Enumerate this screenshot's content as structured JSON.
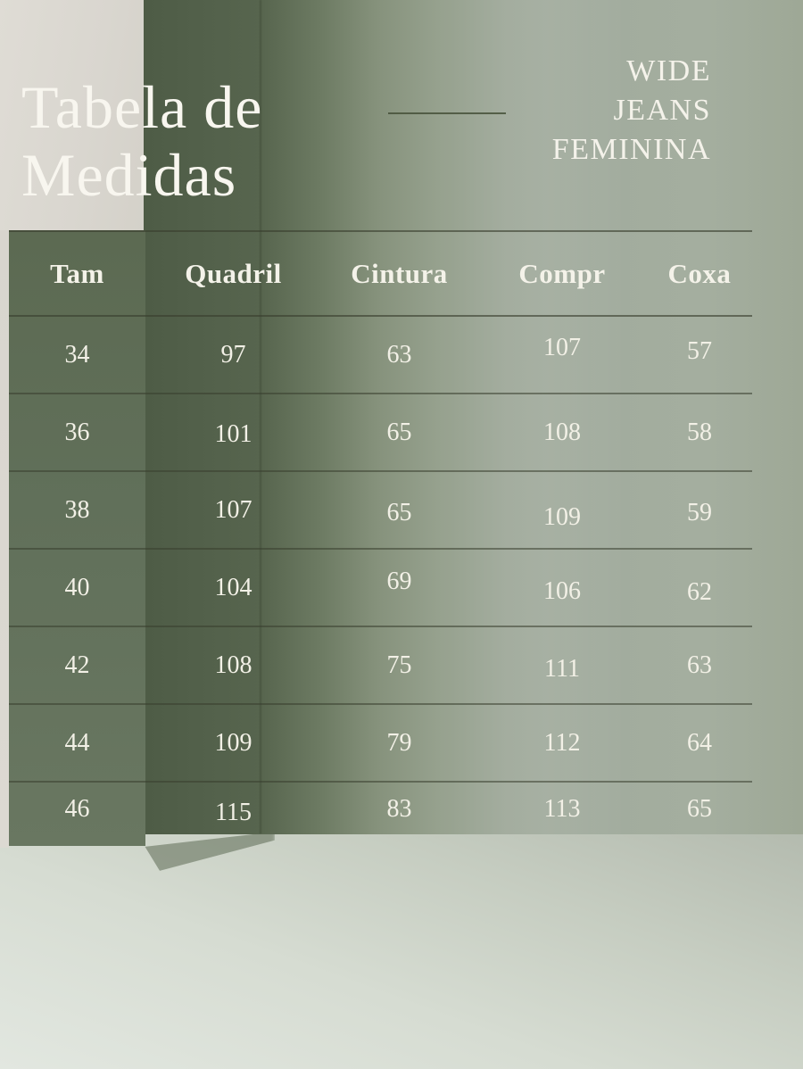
{
  "title": {
    "line1": "Tabela de",
    "line2": "Medidas"
  },
  "subtitle": {
    "lines": [
      "WIDE",
      "JEANS",
      "FEMININA"
    ]
  },
  "table": {
    "headers": [
      "Tam",
      "Quadril",
      "Cintura",
      "Compr",
      "Coxa"
    ],
    "rows": [
      [
        "34",
        "97",
        "63",
        "107",
        "57"
      ],
      [
        "36",
        "101",
        "65",
        "108",
        "58"
      ],
      [
        "38",
        "107",
        "65",
        "109",
        "59"
      ],
      [
        "40",
        "104",
        "69",
        "106",
        "62"
      ],
      [
        "42",
        "108",
        "75",
        "111",
        "63"
      ],
      [
        "44",
        "109",
        "79",
        "112",
        "64"
      ],
      [
        "46",
        "115",
        "83",
        "113",
        "65"
      ]
    ]
  },
  "colors": {
    "wall_dark": "#57654e",
    "wall_light": "#a2ac9e",
    "beige_panel": "#d9d6cf",
    "first_column_panel": "#61705a",
    "floor": "#d6dcd2",
    "text": "#f2f0e6",
    "separator_line": "#383e2d",
    "accent_line": "#46513a"
  }
}
